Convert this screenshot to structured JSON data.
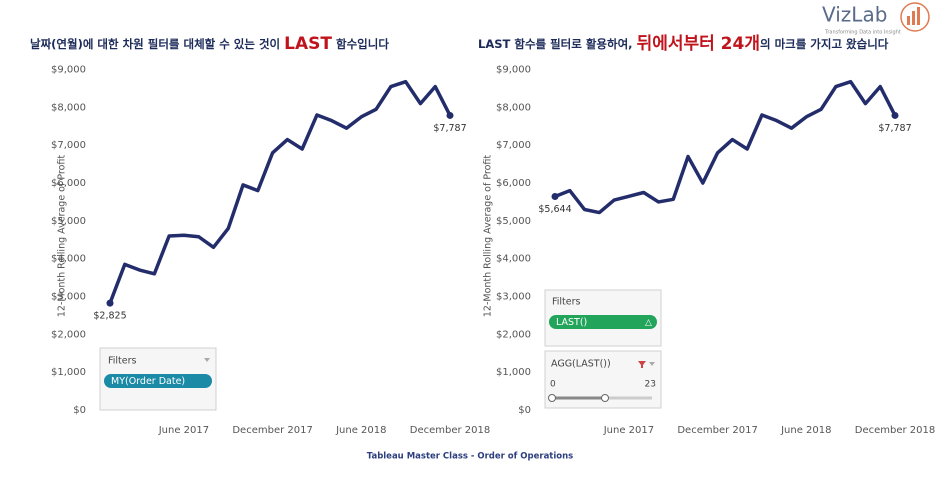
{
  "logo": {
    "name": "VizLab",
    "tagline": "Transforming Data into Insight"
  },
  "footer": "Tableau Master Class - Order of Operations",
  "chart_data": [
    {
      "type": "line",
      "title_parts": [
        "날짜(연월)에 대한 차원 필터를 대체할 수 있는 것이",
        "LAST",
        "함수입니다"
      ],
      "y_label": "12-Month Rolling Average of Profit",
      "categories": [
        null,
        null,
        null,
        null,
        null,
        "June 2017",
        null,
        null,
        null,
        null,
        null,
        "December 2017",
        null,
        null,
        null,
        null,
        null,
        "June 2018",
        null,
        null,
        null,
        null,
        null,
        "December 2018"
      ],
      "values": [
        2825,
        3850,
        3700,
        3600,
        4600,
        4620,
        4580,
        4300,
        4800,
        5950,
        5800,
        6800,
        7150,
        6900,
        7800,
        7650,
        7450,
        7750,
        7950,
        8550,
        8680,
        8100,
        8550,
        7787
      ],
      "value_labels": [
        "$2,825",
        null,
        null,
        null,
        null,
        null,
        null,
        null,
        null,
        null,
        null,
        null,
        null,
        null,
        null,
        null,
        null,
        null,
        null,
        null,
        null,
        null,
        null,
        "$7,787"
      ],
      "color": "#232d6b",
      "ylim": [
        0,
        9200
      ],
      "yticks": [
        {
          "value": 0,
          "label": "$0"
        },
        {
          "value": 1000,
          "label": "$1,000"
        },
        {
          "value": 2000,
          "label": "$2,000"
        },
        {
          "value": 3000,
          "label": "$3,000"
        },
        {
          "value": 4000,
          "label": "$4,000"
        },
        {
          "value": 5000,
          "label": "$5,000"
        },
        {
          "value": 6000,
          "label": "$6,000"
        },
        {
          "value": 7000,
          "label": "$7,000"
        },
        {
          "value": 8000,
          "label": "$8,000"
        },
        {
          "value": 9000,
          "label": "$9,000"
        }
      ],
      "filters": {
        "title": "Filters",
        "pill": "MY(Order Date)"
      }
    },
    {
      "type": "line",
      "title_parts": [
        "LAST 함수를 필터로 활용하여,",
        "뒤에서부터 24개",
        "의 마크를 가지고 왔습니다"
      ],
      "y_label": "12-Month Rolling Average of Profit",
      "categories": [
        null,
        null,
        null,
        null,
        null,
        "June 2017",
        null,
        null,
        null,
        null,
        null,
        "December 2017",
        null,
        null,
        null,
        null,
        null,
        "June 2018",
        null,
        null,
        null,
        null,
        null,
        "December 2018"
      ],
      "values": [
        5644,
        5800,
        5300,
        5220,
        5550,
        5650,
        5750,
        5500,
        5570,
        6700,
        6000,
        6800,
        7150,
        6900,
        7800,
        7650,
        7450,
        7750,
        7950,
        8550,
        8680,
        8100,
        8550,
        7787
      ],
      "value_labels": [
        "$5,644",
        null,
        null,
        null,
        null,
        null,
        null,
        null,
        null,
        null,
        null,
        null,
        null,
        null,
        null,
        null,
        null,
        null,
        null,
        null,
        null,
        null,
        null,
        "$7,787"
      ],
      "color": "#232d6b",
      "ylim": [
        0,
        9200
      ],
      "yticks": [
        {
          "value": 0,
          "label": "$0"
        },
        {
          "value": 1000,
          "label": "$1,000"
        },
        {
          "value": 2000,
          "label": "$2,000"
        },
        {
          "value": 3000,
          "label": "$3,000"
        },
        {
          "value": 4000,
          "label": "$4,000"
        },
        {
          "value": 5000,
          "label": "$5,000"
        },
        {
          "value": 6000,
          "label": "$6,000"
        },
        {
          "value": 7000,
          "label": "$7,000"
        },
        {
          "value": 8000,
          "label": "$8,000"
        },
        {
          "value": 9000,
          "label": "$9,000"
        }
      ],
      "filters": {
        "title": "Filters",
        "pill": "LAST()",
        "pill_icon": "△",
        "slider": {
          "title": "AGG(LAST())",
          "min": 0,
          "max": 23
        }
      }
    }
  ]
}
